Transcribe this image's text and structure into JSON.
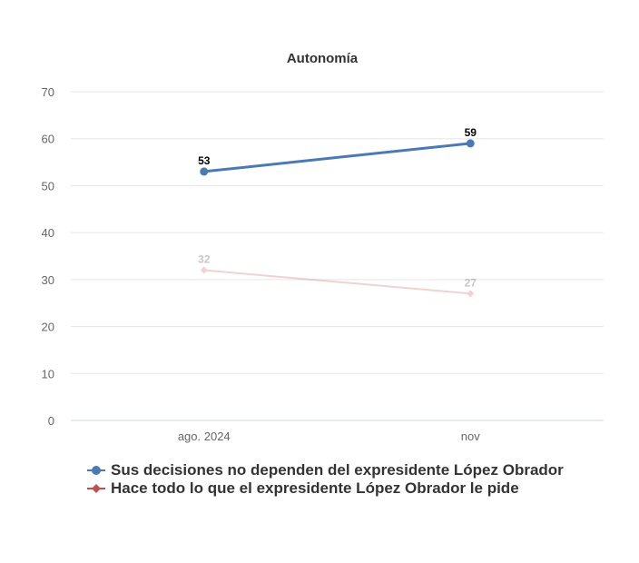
{
  "chart_data": {
    "type": "line",
    "title": "Autonomía",
    "categories": [
      "ago. 2024",
      "nov"
    ],
    "ylim": [
      0,
      70
    ],
    "yticks": [
      0,
      10,
      20,
      30,
      40,
      50,
      60,
      70
    ],
    "grid": true,
    "legend_position": "bottom-left",
    "series": [
      {
        "name": "Sus decisiones no dependen del expresidente López Obrador",
        "values": [
          53,
          59
        ],
        "color": "#4a7ab5",
        "marker": "circle",
        "faded": false
      },
      {
        "name": "Hace todo lo que el expresidente López Obrador le pide",
        "values": [
          32,
          27
        ],
        "color": "#c0504d",
        "marker": "diamond",
        "faded": true
      }
    ]
  }
}
